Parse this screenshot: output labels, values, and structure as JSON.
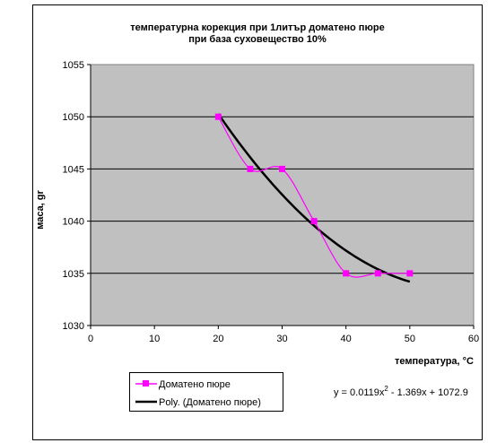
{
  "chart_data": {
    "type": "scatter",
    "title_line1": "температурна корекция при 1литър доматено пюре",
    "title_line2": "при база суховещество 10%",
    "xlabel": "температура, °С",
    "ylabel": "маса, gr",
    "xlim": [
      0,
      60
    ],
    "ylim": [
      1030,
      1055
    ],
    "x_ticks": [
      "0",
      "10",
      "20",
      "30",
      "40",
      "50",
      "60"
    ],
    "y_ticks": [
      "1030",
      "1035",
      "1040",
      "1045",
      "1050",
      "1055"
    ],
    "grid": "horizontal",
    "plot_background": "#c0c0c0",
    "series": [
      {
        "name": "Доматено пюре",
        "color": "#ff00ff",
        "marker": "square",
        "smoothed": true,
        "x": [
          20,
          25,
          30,
          35,
          40,
          45,
          50
        ],
        "y": [
          1050,
          1045,
          1045,
          1040,
          1035,
          1035,
          1035
        ]
      }
    ],
    "trendline": {
      "name": "Poly. (Доматено пюре)",
      "color": "#000000",
      "coefficients": [
        0.0119,
        -1.369,
        1072.9
      ],
      "x_range": [
        20,
        50
      ]
    },
    "equation": {
      "prefix": "y = 0.0119x",
      "sup": "2",
      "suffix": " - 1.369x + 1072.9"
    },
    "legend_placement": "bottom-left"
  }
}
